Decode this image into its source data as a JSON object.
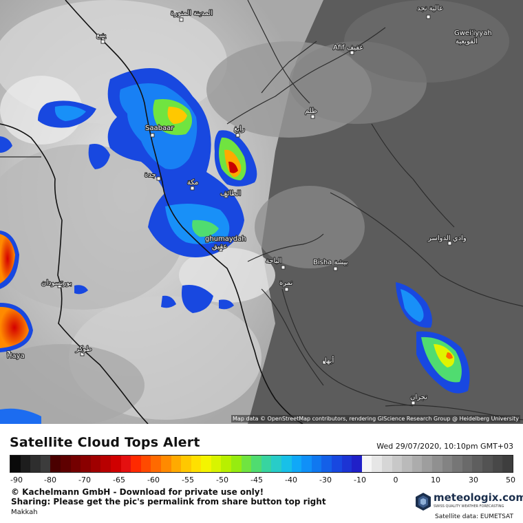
{
  "header": {
    "title": "Satellite Cloud Tops Alert",
    "timestamp": "Wed 29/07/2020, 10:10pm GMT+03"
  },
  "map": {
    "attribution": "Map data © OpenStreetMap contributors, rendering GIScience Research Group @ Heidelberg University",
    "cities": [
      "المدينة المنورة",
      "ينبع",
      "Saabaar",
      "رابغ",
      "جدة",
      "مكة",
      "الطائف",
      "ghumaydah",
      "عقيق",
      "الباحة",
      "نمرة",
      "Bisha بيشة",
      "أبها",
      "نجران",
      "Afif عفيف",
      "ظلم",
      "عالية نجد",
      "Gwei'iyyah",
      "القويعية",
      "وادي الدواسر",
      "بورتسودان",
      "طوكر",
      "Haya"
    ]
  },
  "legend": {
    "ticks": [
      "-90",
      "-80",
      "-70",
      "-65",
      "-60",
      "-55",
      "-50",
      "-45",
      "-40",
      "-30",
      "-10",
      "0",
      "10",
      "30",
      "50"
    ],
    "colors": [
      "#0a0a0a",
      "#1d1d1d",
      "#2e2e2e",
      "#3c3c3c",
      "#4a0000",
      "#5e0000",
      "#740000",
      "#8a0000",
      "#a00000",
      "#b80000",
      "#d00000",
      "#e41010",
      "#ff2a00",
      "#ff4a00",
      "#ff6a00",
      "#ff8a00",
      "#ffaa00",
      "#ffc800",
      "#ffe000",
      "#f4f400",
      "#d8f400",
      "#b8f000",
      "#96ec10",
      "#70e440",
      "#50dc70",
      "#38d4a0",
      "#28ccc8",
      "#18c0e8",
      "#10a8f8",
      "#1090f8",
      "#1078f0",
      "#1460e8",
      "#1848e0",
      "#1c34d4",
      "#2020c8",
      "#f6f6f6",
      "#e6e6e6",
      "#d6d6d6",
      "#c8c8c8",
      "#bababa",
      "#acacac",
      "#9e9e9e",
      "#909090",
      "#838383",
      "#767676",
      "#6a6a6a",
      "#5e5e5e",
      "#535353",
      "#484848",
      "#3e3e3e"
    ]
  },
  "footer": {
    "copyright": "© Kachelmann GmbH - Download for private use only!",
    "sharing": "Sharing: Please get the pic's permalink from share button top right",
    "location": "Makkah",
    "brand": "meteologix.com",
    "brand_tagline": "SWISS QUALITY WEATHER FORECASTING",
    "satellite_credit": "Satellite data: EUMETSAT"
  }
}
